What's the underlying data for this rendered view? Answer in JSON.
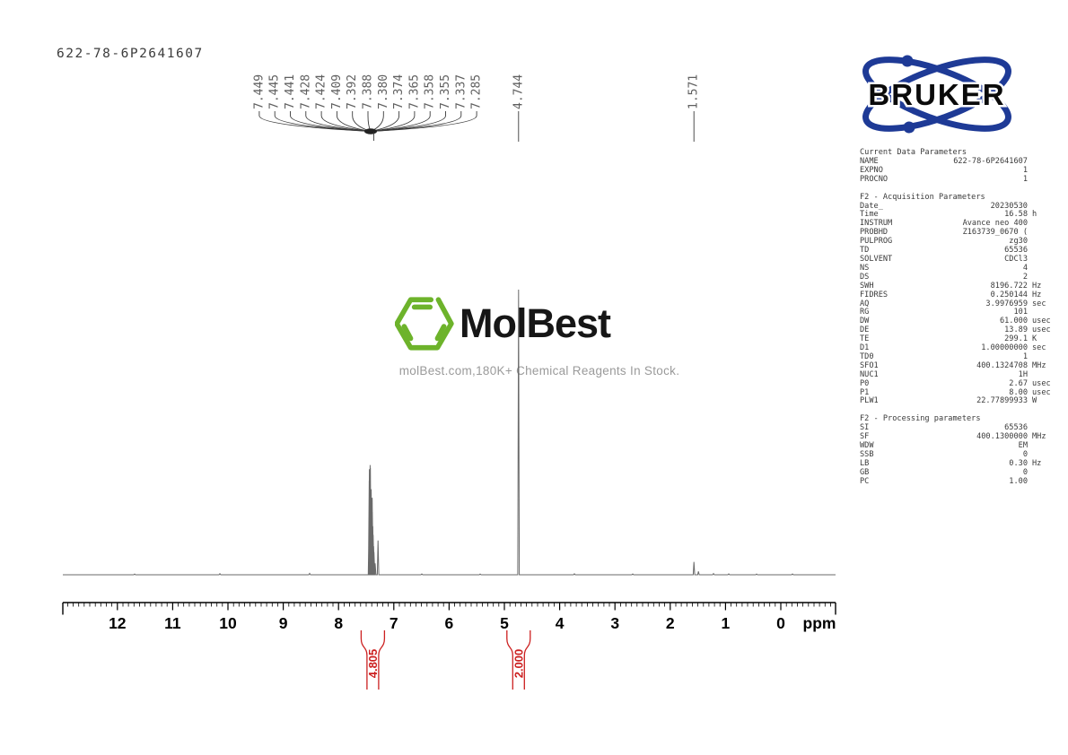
{
  "sample_id": "622-78-6P2641607",
  "watermark": {
    "brand": "MolBest",
    "tagline": "molBest.com,180K+ Chemical Reagents In Stock.",
    "hexagon_color": "#6db32b"
  },
  "bruker": {
    "wordmark": "BRUKER",
    "blue": "#1e3a96"
  },
  "params": {
    "sections": [
      {
        "title": "Current Data Parameters",
        "rows": [
          {
            "label": "NAME",
            "value": "622-78-6P2641607",
            "unit": ""
          },
          {
            "label": "EXPNO",
            "value": "1",
            "unit": ""
          },
          {
            "label": "PROCNO",
            "value": "1",
            "unit": ""
          }
        ]
      },
      {
        "title": "F2 - Acquisition Parameters",
        "rows": [
          {
            "label": "Date_",
            "value": "20230530",
            "unit": ""
          },
          {
            "label": "Time",
            "value": "16.58",
            "unit": "h"
          },
          {
            "label": "INSTRUM",
            "value": "Avance neo 400",
            "unit": ""
          },
          {
            "label": "PROBHD",
            "value": "Z163739_0670 (",
            "unit": ""
          },
          {
            "label": "PULPROG",
            "value": "zg30",
            "unit": ""
          },
          {
            "label": "TD",
            "value": "65536",
            "unit": ""
          },
          {
            "label": "SOLVENT",
            "value": "CDCl3",
            "unit": ""
          },
          {
            "label": "NS",
            "value": "4",
            "unit": ""
          },
          {
            "label": "DS",
            "value": "2",
            "unit": ""
          },
          {
            "label": "SWH",
            "value": "8196.722",
            "unit": "Hz"
          },
          {
            "label": "FIDRES",
            "value": "0.250144",
            "unit": "Hz"
          },
          {
            "label": "AQ",
            "value": "3.9976959",
            "unit": "sec"
          },
          {
            "label": "RG",
            "value": "101",
            "unit": ""
          },
          {
            "label": "DW",
            "value": "61.000",
            "unit": "usec"
          },
          {
            "label": "DE",
            "value": "13.89",
            "unit": "usec"
          },
          {
            "label": "TE",
            "value": "299.1",
            "unit": "K"
          },
          {
            "label": "D1",
            "value": "1.00000000",
            "unit": "sec"
          },
          {
            "label": "TD0",
            "value": "1",
            "unit": ""
          },
          {
            "label": "SFO1",
            "value": "400.1324708",
            "unit": "MHz"
          },
          {
            "label": "NUC1",
            "value": "1H",
            "unit": ""
          },
          {
            "label": "P0",
            "value": "2.67",
            "unit": "usec"
          },
          {
            "label": "P1",
            "value": "8.00",
            "unit": "usec"
          },
          {
            "label": "PLW1",
            "value": "22.77899933",
            "unit": "W"
          }
        ]
      },
      {
        "title": "F2 - Processing parameters",
        "rows": [
          {
            "label": "SI",
            "value": "65536",
            "unit": ""
          },
          {
            "label": "SF",
            "value": "400.1300000",
            "unit": "MHz"
          },
          {
            "label": "WDW",
            "value": "EM",
            "unit": ""
          },
          {
            "label": "SSB",
            "value": "0",
            "unit": ""
          },
          {
            "label": "LB",
            "value": "0.30",
            "unit": "Hz"
          },
          {
            "label": "GB",
            "value": "0",
            "unit": ""
          },
          {
            "label": "PC",
            "value": "1.00",
            "unit": ""
          }
        ]
      }
    ]
  },
  "chart_data": {
    "type": "line",
    "kind": "1H NMR spectrum",
    "title": "",
    "xlabel": "ppm",
    "x_axis": {
      "min": -1,
      "max": 13,
      "reversed": true,
      "tick_labels": [
        "12",
        "11",
        "10",
        "9",
        "8",
        "7",
        "6",
        "5",
        "4",
        "3",
        "2",
        "1",
        "0"
      ],
      "minor_tick_step": 0.1
    },
    "peaks": [
      {
        "ppm": 7.449,
        "rel_intensity": 0.16
      },
      {
        "ppm": 7.445,
        "rel_intensity": 0.33
      },
      {
        "ppm": 7.441,
        "rel_intensity": 0.37
      },
      {
        "ppm": 7.428,
        "rel_intensity": 0.385
      },
      {
        "ppm": 7.424,
        "rel_intensity": 0.375
      },
      {
        "ppm": 7.409,
        "rel_intensity": 0.3
      },
      {
        "ppm": 7.392,
        "rel_intensity": 0.27
      },
      {
        "ppm": 7.388,
        "rel_intensity": 0.22
      },
      {
        "ppm": 7.38,
        "rel_intensity": 0.17
      },
      {
        "ppm": 7.374,
        "rel_intensity": 0.14
      },
      {
        "ppm": 7.365,
        "rel_intensity": 0.1
      },
      {
        "ppm": 7.358,
        "rel_intensity": 0.08
      },
      {
        "ppm": 7.355,
        "rel_intensity": 0.06
      },
      {
        "ppm": 7.337,
        "rel_intensity": 0.04
      },
      {
        "ppm": 7.285,
        "rel_intensity": 0.12
      },
      {
        "ppm": 4.744,
        "rel_intensity": 1.0
      },
      {
        "ppm": 1.571,
        "rel_intensity": 0.045
      },
      {
        "ppm": 1.49,
        "rel_intensity": 0.012
      }
    ],
    "peak_label_groups": [
      {
        "style": "fan",
        "labels": [
          "7.449",
          "7.445",
          "7.441",
          "7.428",
          "7.424",
          "7.409",
          "7.392",
          "7.388",
          "7.380",
          "7.374",
          "7.365",
          "7.358",
          "7.355",
          "7.337",
          "7.285"
        ]
      },
      {
        "style": "single",
        "labels": [
          "4.744"
        ]
      },
      {
        "style": "single",
        "labels": [
          "1.571"
        ]
      }
    ],
    "integrals": [
      {
        "value": "4.805",
        "center_ppm": 7.38
      },
      {
        "value": "2.000",
        "center_ppm": 4.744
      }
    ],
    "colors": {
      "trace": "#6a6a6a",
      "peak_labels": "#5f5f5f",
      "axis": "#000000",
      "integral": "#cc2020"
    }
  }
}
